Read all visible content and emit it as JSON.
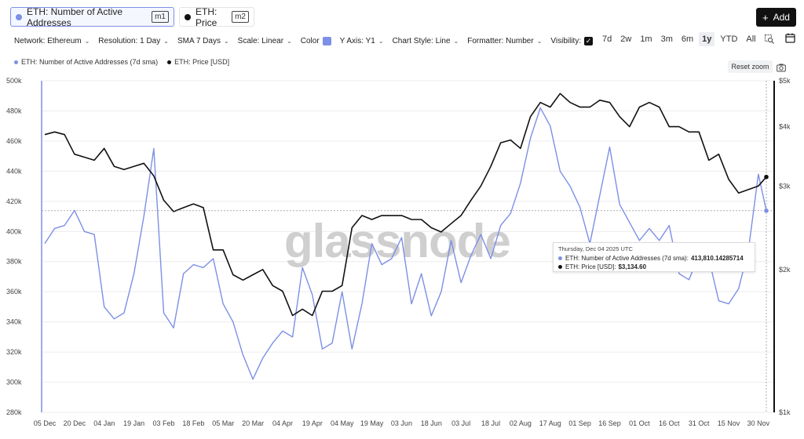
{
  "metrics": [
    {
      "label": "ETH: Number of Active Addresses",
      "badge": "m1",
      "color": "#7d8fe6"
    },
    {
      "label": "ETH: Price",
      "badge": "m2",
      "color": "#111111"
    }
  ],
  "add_button": {
    "label": "Add",
    "icon": "plus-icon"
  },
  "options": {
    "network": "Network: Ethereum",
    "resolution": "Resolution: 1 Day",
    "sma": "SMA 7 Days",
    "scale": "Scale: Linear",
    "color": "Color",
    "y_axis": "Y Axis: Y1",
    "chart_style": "Chart Style: Line",
    "formatter": "Formatter: Number",
    "visibility": "Visibility:"
  },
  "ranges": [
    "7d",
    "2w",
    "1m",
    "3m",
    "6m",
    "1y",
    "YTD",
    "All"
  ],
  "active_range": "1y",
  "reset_zoom": "Reset zoom",
  "watermark": "glassnode",
  "tooltip": {
    "date": "Thursday, Dec 04 2025 UTC",
    "row1_label": "ETH: Number of Active Addresses (7d sma):",
    "row1_value": "413,810.14285714",
    "row2_label": "ETH: Price [USD]:",
    "row2_value": "$3,134.60"
  },
  "chart_data": {
    "type": "line",
    "legend": [
      "ETH: Number of Active Addresses (7d sma)",
      "ETH: Price [USD]"
    ],
    "legend_placement": "top-left",
    "grid": true,
    "x_ticks": [
      "05 Dec",
      "20 Dec",
      "04 Jan",
      "19 Jan",
      "03 Feb",
      "18 Feb",
      "05 Mar",
      "20 Mar",
      "04 Apr",
      "19 Apr",
      "04 May",
      "19 May",
      "03 Jun",
      "18 Jun",
      "03 Jul",
      "18 Jul",
      "02 Aug",
      "17 Aug",
      "01 Sep",
      "16 Sep",
      "01 Oct",
      "16 Oct",
      "31 Oct",
      "15 Nov",
      "30 Nov"
    ],
    "y_left": {
      "ticks": [
        "280k",
        "300k",
        "320k",
        "340k",
        "360k",
        "380k",
        "400k",
        "420k",
        "440k",
        "460k",
        "480k",
        "500k"
      ],
      "range": [
        280000,
        500000
      ]
    },
    "y_right": {
      "ticks": [
        "$1k",
        "$2k",
        "$3k",
        "$4k",
        "$5k"
      ],
      "range": [
        1000,
        5000
      ],
      "scale": "log"
    },
    "series": [
      {
        "name": "ETH: Number of Active Addresses (7d sma)",
        "axis": "left",
        "color": "#7d8fe6",
        "x": [
          "2024-12-05",
          "2024-12-10",
          "2024-12-15",
          "2024-12-20",
          "2024-12-25",
          "2024-12-30",
          "2025-01-04",
          "2025-01-09",
          "2025-01-14",
          "2025-01-19",
          "2025-01-24",
          "2025-01-29",
          "2025-02-03",
          "2025-02-08",
          "2025-02-13",
          "2025-02-18",
          "2025-02-23",
          "2025-02-28",
          "2025-03-05",
          "2025-03-10",
          "2025-03-15",
          "2025-03-20",
          "2025-03-25",
          "2025-03-30",
          "2025-04-04",
          "2025-04-09",
          "2025-04-14",
          "2025-04-19",
          "2025-04-24",
          "2025-04-29",
          "2025-05-04",
          "2025-05-09",
          "2025-05-14",
          "2025-05-19",
          "2025-05-24",
          "2025-05-29",
          "2025-06-03",
          "2025-06-08",
          "2025-06-13",
          "2025-06-18",
          "2025-06-23",
          "2025-06-28",
          "2025-07-03",
          "2025-07-08",
          "2025-07-13",
          "2025-07-18",
          "2025-07-23",
          "2025-07-28",
          "2025-08-02",
          "2025-08-07",
          "2025-08-12",
          "2025-08-17",
          "2025-08-22",
          "2025-08-27",
          "2025-09-01",
          "2025-09-06",
          "2025-09-11",
          "2025-09-16",
          "2025-09-21",
          "2025-09-26",
          "2025-10-01",
          "2025-10-06",
          "2025-10-11",
          "2025-10-16",
          "2025-10-21",
          "2025-10-26",
          "2025-10-31",
          "2025-11-05",
          "2025-11-10",
          "2025-11-15",
          "2025-11-20",
          "2025-11-25",
          "2025-11-30",
          "2025-12-04"
        ],
        "y": [
          392000,
          402000,
          404000,
          414000,
          400000,
          398000,
          350000,
          342000,
          346000,
          372000,
          410000,
          455000,
          346000,
          336000,
          372000,
          378000,
          376000,
          382000,
          352000,
          340000,
          318000,
          302000,
          316000,
          326000,
          334000,
          330000,
          376000,
          358000,
          322000,
          326000,
          360000,
          322000,
          352000,
          392000,
          378000,
          382000,
          396000,
          352000,
          372000,
          344000,
          360000,
          394000,
          366000,
          384000,
          398000,
          382000,
          404000,
          412000,
          432000,
          462000,
          482000,
          470000,
          440000,
          430000,
          416000,
          392000,
          424000,
          456000,
          418000,
          406000,
          394000,
          402000,
          394000,
          404000,
          372000,
          368000,
          384000,
          382000,
          354000,
          352000,
          362000,
          388000,
          438000,
          413810
        ]
      },
      {
        "name": "ETH: Price [USD]",
        "axis": "right",
        "color": "#111111",
        "x": [
          "2024-12-05",
          "2024-12-10",
          "2024-12-15",
          "2024-12-20",
          "2024-12-25",
          "2024-12-30",
          "2025-01-04",
          "2025-01-09",
          "2025-01-14",
          "2025-01-19",
          "2025-01-24",
          "2025-01-29",
          "2025-02-03",
          "2025-02-08",
          "2025-02-13",
          "2025-02-18",
          "2025-02-23",
          "2025-02-28",
          "2025-03-05",
          "2025-03-10",
          "2025-03-15",
          "2025-03-20",
          "2025-03-25",
          "2025-03-30",
          "2025-04-04",
          "2025-04-09",
          "2025-04-14",
          "2025-04-19",
          "2025-04-24",
          "2025-04-29",
          "2025-05-04",
          "2025-05-09",
          "2025-05-14",
          "2025-05-19",
          "2025-05-24",
          "2025-05-29",
          "2025-06-03",
          "2025-06-08",
          "2025-06-13",
          "2025-06-18",
          "2025-06-23",
          "2025-06-28",
          "2025-07-03",
          "2025-07-08",
          "2025-07-13",
          "2025-07-18",
          "2025-07-23",
          "2025-07-28",
          "2025-08-02",
          "2025-08-07",
          "2025-08-12",
          "2025-08-17",
          "2025-08-22",
          "2025-08-27",
          "2025-09-01",
          "2025-09-06",
          "2025-09-11",
          "2025-09-16",
          "2025-09-21",
          "2025-09-26",
          "2025-10-01",
          "2025-10-06",
          "2025-10-11",
          "2025-10-16",
          "2025-10-21",
          "2025-10-26",
          "2025-10-31",
          "2025-11-05",
          "2025-11-10",
          "2025-11-15",
          "2025-11-20",
          "2025-11-25",
          "2025-11-30",
          "2025-12-04"
        ],
        "y": [
          3850,
          3900,
          3850,
          3500,
          3450,
          3400,
          3600,
          3300,
          3250,
          3300,
          3350,
          3150,
          2800,
          2650,
          2700,
          2750,
          2700,
          2200,
          2200,
          1950,
          1900,
          1950,
          2000,
          1850,
          1800,
          1600,
          1650,
          1600,
          1800,
          1800,
          1850,
          2450,
          2600,
          2550,
          2600,
          2600,
          2600,
          2550,
          2550,
          2450,
          2400,
          2500,
          2600,
          2800,
          3000,
          3300,
          3700,
          3750,
          3600,
          4200,
          4500,
          4400,
          4700,
          4500,
          4400,
          4400,
          4550,
          4500,
          4200,
          4000,
          4400,
          4500,
          4400,
          4000,
          4000,
          3900,
          3900,
          3400,
          3500,
          3100,
          2900,
          2950,
          3000,
          3134.6
        ]
      }
    ]
  }
}
